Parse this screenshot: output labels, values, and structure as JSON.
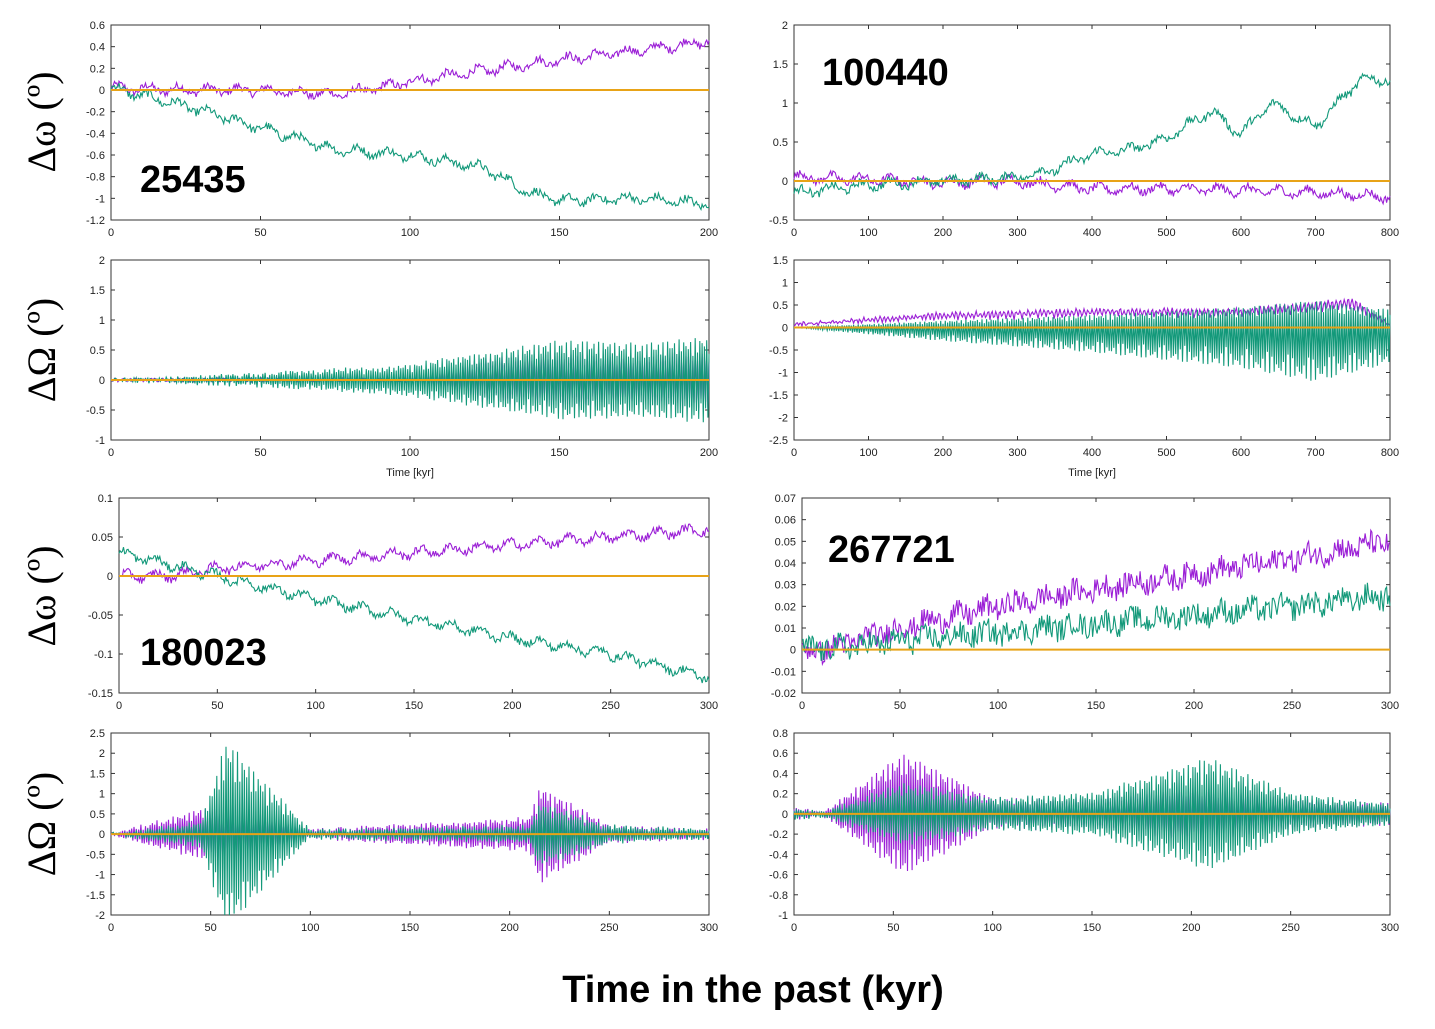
{
  "figure": {
    "xtitle": "Time in the past (kyr)",
    "colors": {
      "purple": "#9b1fd6",
      "green": "#13997a",
      "zero": "#e8a317",
      "frame": "#333333"
    }
  },
  "chart_data": [
    {
      "type": "line",
      "id": "p1",
      "title": "25435",
      "ylabel": "Δω (º)",
      "xlabel": "",
      "xlim": [
        0,
        200
      ],
      "ylim": [
        -1.2,
        0.6
      ],
      "xticks": [
        0,
        50,
        100,
        150,
        200
      ],
      "yticks": [
        0.6,
        0.4,
        0.2,
        0,
        -0.2,
        -0.4,
        -0.6,
        -0.8,
        -1,
        -1.2
      ],
      "series": [
        {
          "name": "purple",
          "x": [
            0,
            25,
            50,
            75,
            90,
            100,
            125,
            150,
            175,
            200
          ],
          "y": [
            0.02,
            0.0,
            0.0,
            -0.04,
            0.02,
            0.08,
            0.18,
            0.28,
            0.36,
            0.45
          ]
        },
        {
          "name": "green",
          "x": [
            0,
            25,
            50,
            75,
            100,
            125,
            140,
            150,
            175,
            200
          ],
          "y": [
            0.02,
            -0.15,
            -0.35,
            -0.55,
            -0.6,
            -0.72,
            -0.95,
            -1.02,
            -1.0,
            -1.05
          ]
        }
      ]
    },
    {
      "type": "line",
      "id": "p2",
      "title": "100440",
      "ylabel": "",
      "xlabel": "",
      "xlim": [
        0,
        800
      ],
      "ylim": [
        -0.5,
        2
      ],
      "xticks": [
        0,
        100,
        200,
        300,
        400,
        500,
        600,
        700,
        800
      ],
      "yticks": [
        2,
        1.5,
        1,
        0.5,
        0,
        -0.5
      ],
      "series": [
        {
          "name": "purple",
          "x": [
            0,
            100,
            200,
            300,
            400,
            500,
            600,
            700,
            800
          ],
          "y": [
            0.05,
            0.02,
            -0.02,
            0.0,
            -0.1,
            -0.1,
            -0.12,
            -0.15,
            -0.2
          ]
        },
        {
          "name": "green",
          "x": [
            0,
            100,
            200,
            300,
            350,
            400,
            450,
            500,
            560,
            600,
            640,
            700,
            760,
            800
          ],
          "y": [
            -0.15,
            -0.05,
            0.0,
            0.05,
            0.15,
            0.35,
            0.4,
            0.55,
            0.9,
            0.6,
            1.0,
            0.7,
            1.3,
            1.3
          ]
        }
      ]
    },
    {
      "type": "line",
      "id": "p3",
      "title": "",
      "ylabel": "ΔΩ (º)",
      "xlabel": "Time [kyr]",
      "xlim": [
        0,
        200
      ],
      "ylim": [
        -1,
        2
      ],
      "xticks": [
        0,
        50,
        100,
        150,
        200
      ],
      "yticks": [
        2,
        1.5,
        1,
        0.5,
        0,
        -0.5,
        -1
      ],
      "series": [
        {
          "name": "purple",
          "x": [
            0,
            50,
            100,
            125,
            150,
            175,
            200
          ],
          "y": [
            0.0,
            0.0,
            0.0,
            -0.35,
            -0.45,
            -0.4,
            -0.5
          ]
        },
        {
          "name": "green",
          "x": [
            0,
            50,
            100,
            125,
            150,
            175,
            200
          ],
          "y": [
            0.0,
            0.1,
            0.25,
            0.45,
            0.65,
            0.6,
            0.7
          ]
        }
      ]
    },
    {
      "type": "line",
      "id": "p4",
      "title": "",
      "ylabel": "",
      "xlabel": "Time [kyr]",
      "xlim": [
        0,
        800
      ],
      "ylim": [
        -2.5,
        1.5
      ],
      "xticks": [
        0,
        100,
        200,
        300,
        400,
        500,
        600,
        700,
        800
      ],
      "yticks": [
        1.5,
        1,
        0.5,
        0,
        -0.5,
        -1,
        -1.5,
        -2,
        -2.5
      ],
      "series": [
        {
          "name": "purple",
          "x": [
            0,
            200,
            400,
            600,
            750,
            800
          ],
          "y": [
            0.1,
            0.35,
            0.45,
            0.45,
            0.7,
            0.1
          ]
        },
        {
          "name": "green",
          "x": [
            0,
            200,
            400,
            600,
            700,
            800
          ],
          "y": [
            0.0,
            -0.3,
            -0.55,
            -0.9,
            -1.2,
            -0.8
          ]
        }
      ]
    },
    {
      "type": "line",
      "id": "p5",
      "title": "180023",
      "ylabel": "Δω (º)",
      "xlabel": "",
      "xlim": [
        0,
        300
      ],
      "ylim": [
        -0.15,
        0.1
      ],
      "xticks": [
        0,
        50,
        100,
        150,
        200,
        250,
        300
      ],
      "yticks": [
        0.1,
        0.05,
        0,
        -0.05,
        -0.1,
        -0.15
      ],
      "series": [
        {
          "name": "purple",
          "x": [
            0,
            25,
            50,
            100,
            150,
            200,
            250,
            300
          ],
          "y": [
            0.0,
            0.0,
            0.01,
            0.02,
            0.03,
            0.04,
            0.05,
            0.06
          ]
        },
        {
          "name": "green",
          "x": [
            0,
            25,
            50,
            100,
            150,
            200,
            250,
            300
          ],
          "y": [
            0.03,
            0.015,
            0.0,
            -0.03,
            -0.055,
            -0.08,
            -0.1,
            -0.13
          ]
        }
      ]
    },
    {
      "type": "line",
      "id": "p6",
      "title": "267721",
      "ylabel": "",
      "xlabel": "",
      "xlim": [
        0,
        300
      ],
      "ylim": [
        -0.02,
        0.07
      ],
      "xticks": [
        0,
        50,
        100,
        150,
        200,
        250,
        300
      ],
      "yticks": [
        0.07,
        0.06,
        0.05,
        0.04,
        0.03,
        0.02,
        0.01,
        0,
        -0.01,
        -0.02
      ],
      "series": [
        {
          "name": "purple",
          "x": [
            0,
            20,
            50,
            100,
            150,
            200,
            250,
            300
          ],
          "y": [
            -0.002,
            0.002,
            0.01,
            0.02,
            0.028,
            0.035,
            0.042,
            0.05
          ]
        },
        {
          "name": "green",
          "x": [
            0,
            20,
            50,
            100,
            150,
            200,
            250,
            300
          ],
          "y": [
            0.0,
            0.001,
            0.004,
            0.008,
            0.012,
            0.016,
            0.02,
            0.025
          ]
        }
      ]
    },
    {
      "type": "line",
      "id": "p7",
      "title": "",
      "ylabel": "ΔΩ (º)",
      "xlabel": "",
      "xlim": [
        0,
        300
      ],
      "ylim": [
        -2,
        2.5
      ],
      "xticks": [
        0,
        50,
        100,
        150,
        200,
        250,
        300
      ],
      "yticks": [
        2.5,
        2,
        1.5,
        1,
        0.5,
        0,
        -0.5,
        -1,
        -1.5,
        -2
      ],
      "series": [
        {
          "name": "purple",
          "x": [
            0,
            45,
            60,
            100,
            210,
            215,
            250,
            300
          ],
          "y": [
            0.0,
            0.6,
            0.8,
            0.1,
            0.4,
            1.2,
            0.2,
            0.1
          ]
        },
        {
          "name": "green",
          "x": [
            0,
            45,
            58,
            100,
            210,
            215,
            250,
            300
          ],
          "y": [
            0.0,
            0.3,
            2.3,
            0.1,
            0.2,
            0.8,
            0.2,
            0.1
          ]
        }
      ]
    },
    {
      "type": "line",
      "id": "p8",
      "title": "",
      "ylabel": "",
      "xlabel": "",
      "xlim": [
        0,
        300
      ],
      "ylim": [
        -1,
        0.8
      ],
      "xticks": [
        0,
        50,
        100,
        150,
        200,
        250,
        300
      ],
      "yticks": [
        0.8,
        0.6,
        0.4,
        0.2,
        0,
        -0.2,
        -0.4,
        -0.6,
        -0.8,
        -1
      ],
      "series": [
        {
          "name": "purple",
          "x": [
            0,
            15,
            55,
            100,
            150,
            200,
            250,
            300
          ],
          "y": [
            0.05,
            0.02,
            0.6,
            0.15,
            0.15,
            0.3,
            0.15,
            0.1
          ]
        },
        {
          "name": "green",
          "x": [
            0,
            15,
            55,
            100,
            150,
            200,
            210,
            250,
            300
          ],
          "y": [
            0.05,
            0.02,
            0.3,
            0.15,
            0.2,
            0.5,
            0.55,
            0.2,
            0.1
          ]
        }
      ]
    }
  ]
}
